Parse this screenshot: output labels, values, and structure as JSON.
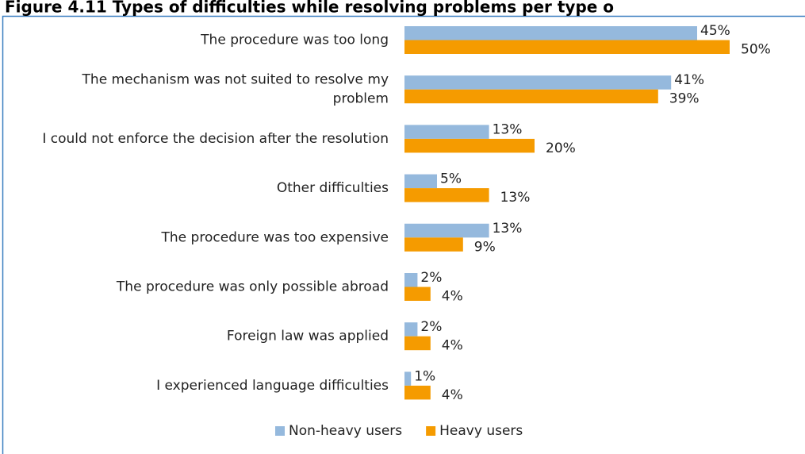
{
  "chart_data": {
    "type": "bar",
    "orientation": "horizontal",
    "title": "Figure 4.11 Types of difficulties while resolving problems per type o",
    "categories": [
      "The procedure was too long",
      "The mechanism was not suited to resolve my problem",
      "I could not enforce the decision after the resolution",
      "Other difficulties",
      "The procedure was too expensive",
      "The procedure was only possible abroad",
      "Foreign law was applied",
      "I experienced language difficulties"
    ],
    "series": [
      {
        "name": "Non-heavy users",
        "color": "#95b9dd",
        "values": [
          45,
          41,
          13,
          5,
          13,
          2,
          2,
          1
        ],
        "value_labels": [
          "45%",
          "41%",
          "13%",
          "5%",
          "13%",
          "2%",
          "2%",
          "1%"
        ]
      },
      {
        "name": "Heavy users",
        "color": "#f59b00",
        "values": [
          50,
          39,
          20,
          13,
          9,
          4,
          4,
          4
        ],
        "value_labels": [
          "50%",
          "39%",
          "20%",
          "13%",
          "9%",
          "4%",
          "4%",
          "4%"
        ]
      }
    ],
    "legend": "bottom"
  }
}
